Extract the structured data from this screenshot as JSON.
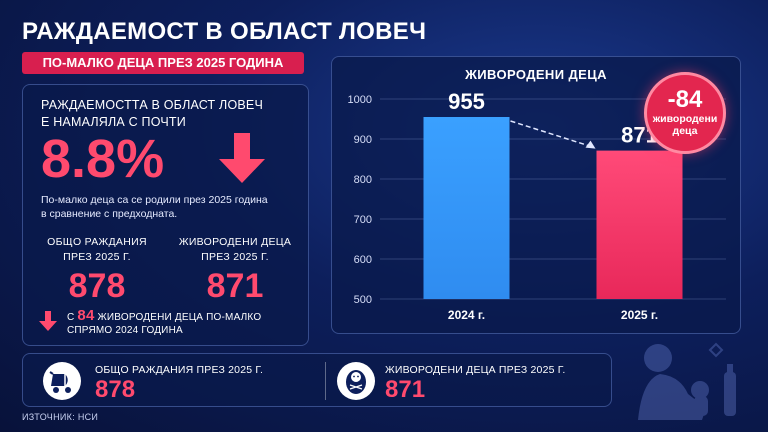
{
  "title": "РАЖДАЕМОСТ В ОБЛАСТ ЛОВЕЧ",
  "subtitle": "ПО-МАЛКО ДЕЦА ПРЕЗ 2025 ГОДИНА",
  "left": {
    "head_line1": "РАЖДАЕМОСТТА В ОБЛАСТ ЛОВЕЧ",
    "head_line2": "Е НАМАЛЯЛА С ПОЧТИ",
    "big_value": "8.8%",
    "desc_line1": "По-малко деца са се родили през 2025 година",
    "desc_line2": "в сравнение с предходната.",
    "stat1_label1": "ОБЩО РАЖДАНИЯ",
    "stat1_label2": "ПРЕЗ 2025 Г.",
    "stat1_value": "878",
    "stat2_label1": "ЖИВОРОДЕНИ ДЕЦА",
    "stat2_label2": "ПРЕЗ 2025 Г.",
    "stat2_value": "871",
    "note_prefix": "С",
    "note_value": "84",
    "note_suffix": "ЖИВОРОДЕНИ ДЕЦА ПО-МАЛКО",
    "note_line2": "СПРЯМО 2024 ГОДИНА"
  },
  "badge": {
    "value": "-84",
    "label_line1": "живородени",
    "label_line2": "деца"
  },
  "bottom": {
    "item1_label": "ОБЩО РАЖДАНИЯ ПРЕЗ 2025 Г.",
    "item1_value": "878",
    "item2_label": "ЖИВОРОДЕНИ ДЕЦА ПРЕЗ 2025 Г.",
    "item2_value": "871"
  },
  "source": "ИЗТОЧНИК: НСИ",
  "colors": {
    "accent": "#e3264f",
    "bar_2024": "#2f8cf0",
    "bar_2025": "#e8285a"
  },
  "icons": {
    "stroller": "stroller-icon",
    "baby": "baby-icon",
    "arrow": "arrow-down-icon"
  },
  "chart_data": {
    "type": "bar",
    "title": "ЖИВОРОДЕНИ ДЕЦА",
    "categories": [
      "2024 г.",
      "2025 г."
    ],
    "values": [
      955,
      871
    ],
    "value_labels": [
      "955",
      "871"
    ],
    "ylim": [
      500,
      1000
    ],
    "yticks": [
      500,
      600,
      700,
      800,
      900,
      1000
    ],
    "grid": true,
    "legend": "none"
  }
}
